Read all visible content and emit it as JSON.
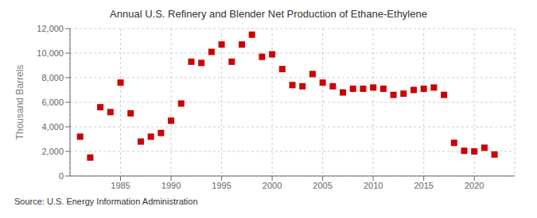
{
  "chart_data": {
    "type": "scatter",
    "title": "Annual U.S. Refinery and Blender Net Production of Ethane-Ethylene",
    "ylabel": "Thousand Barrels",
    "annotations": [
      "Source: U.S. Energy Information Administration"
    ],
    "x": [
      1981,
      1982,
      1983,
      1984,
      1985,
      1986,
      1987,
      1988,
      1989,
      1990,
      1991,
      1992,
      1993,
      1994,
      1995,
      1996,
      1997,
      1998,
      1999,
      2000,
      2001,
      2002,
      2003,
      2004,
      2005,
      2006,
      2007,
      2008,
      2009,
      2010,
      2011,
      2012,
      2013,
      2014,
      2015,
      2016,
      2017,
      2018,
      2019,
      2020,
      2021,
      2022
    ],
    "values": [
      3200,
      1500,
      5600,
      5200,
      7600,
      5100,
      2800,
      3200,
      3500,
      4500,
      5900,
      9300,
      9200,
      10100,
      10700,
      9300,
      10700,
      11500,
      9700,
      9900,
      8700,
      7400,
      7300,
      8300,
      7600,
      7300,
      6800,
      7100,
      7100,
      7200,
      7100,
      6600,
      6700,
      7000,
      7100,
      7200,
      6600,
      2700,
      2050,
      2000,
      2300,
      1750
    ],
    "color": "#cc0000",
    "marker": "square",
    "xlim": [
      1980,
      2024
    ],
    "xticks": [
      1985,
      1990,
      1995,
      2000,
      2005,
      2010,
      2015,
      2020
    ],
    "ylim": [
      0,
      12000
    ],
    "yticks": [
      0,
      {
        "value": 2000,
        "label": "2,000"
      },
      {
        "value": 4000,
        "label": "4,000"
      },
      {
        "value": 6000,
        "label": "6,000"
      },
      {
        "value": 8000,
        "label": "8,000"
      },
      {
        "value": 10000,
        "label": "10,000"
      },
      {
        "value": 12000,
        "label": "12,000"
      }
    ],
    "grid": true
  }
}
